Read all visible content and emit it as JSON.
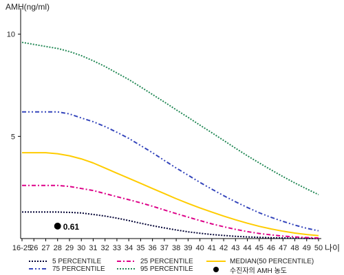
{
  "chart_data": {
    "type": "line",
    "yaxis_label": "AMH(ng/ml)",
    "xaxis_label": "나이",
    "x_categories": [
      "16-25",
      "26",
      "27",
      "28",
      "29",
      "30",
      "31",
      "32",
      "33",
      "34",
      "35",
      "36",
      "37",
      "38",
      "39",
      "40",
      "41",
      "42",
      "43",
      "44",
      "45",
      "46",
      "47",
      "48",
      "49",
      "50"
    ],
    "y_ticks": [
      5,
      10
    ],
    "ylim": [
      0,
      11
    ],
    "series": [
      {
        "name": "5 PERCENTILE",
        "color": "#000033",
        "dash": "dot",
        "values": [
          1.3,
          1.3,
          1.3,
          1.3,
          1.28,
          1.25,
          1.18,
          1.1,
          1.0,
          0.88,
          0.75,
          0.63,
          0.52,
          0.42,
          0.33,
          0.26,
          0.2,
          0.15,
          0.11,
          0.08,
          0.06,
          0.04,
          0.03,
          0.02,
          0.01,
          0.0
        ]
      },
      {
        "name": "25 PERCENTILE",
        "color": "#dd0088",
        "dash": "dashdot",
        "values": [
          2.6,
          2.6,
          2.6,
          2.6,
          2.55,
          2.45,
          2.35,
          2.2,
          2.05,
          1.9,
          1.75,
          1.58,
          1.4,
          1.22,
          1.05,
          0.88,
          0.72,
          0.58,
          0.45,
          0.34,
          0.25,
          0.18,
          0.12,
          0.08,
          0.05,
          0.03
        ]
      },
      {
        "name": "MEDIAN(50 PERCENTILE)",
        "color": "#ffcc00",
        "dash": "solid",
        "values": [
          4.2,
          4.2,
          4.2,
          4.15,
          4.05,
          3.9,
          3.7,
          3.45,
          3.2,
          2.95,
          2.7,
          2.45,
          2.2,
          1.95,
          1.72,
          1.5,
          1.3,
          1.1,
          0.92,
          0.75,
          0.6,
          0.47,
          0.36,
          0.27,
          0.2,
          0.14
        ]
      },
      {
        "name": "75 PERCENTILE",
        "color": "#3344bb",
        "dash": "dashdotdot",
        "values": [
          6.2,
          6.2,
          6.2,
          6.2,
          6.1,
          5.9,
          5.72,
          5.48,
          5.2,
          4.9,
          4.55,
          4.2,
          3.82,
          3.45,
          3.1,
          2.75,
          2.42,
          2.1,
          1.8,
          1.52,
          1.26,
          1.04,
          0.84,
          0.66,
          0.5,
          0.38
        ]
      },
      {
        "name": "95 PERCENTILE",
        "color": "#228855",
        "dash": "dot",
        "values": [
          9.6,
          9.5,
          9.4,
          9.3,
          9.15,
          8.95,
          8.7,
          8.42,
          8.1,
          7.78,
          7.42,
          7.05,
          6.68,
          6.3,
          5.93,
          5.55,
          5.18,
          4.8,
          4.42,
          4.05,
          3.7,
          3.36,
          3.03,
          2.72,
          2.43,
          2.15
        ]
      }
    ],
    "marker": {
      "name": "수진자의 AMH 농도",
      "x_index": 3,
      "y": 0.61,
      "label": "0.61",
      "color": "#000000"
    }
  },
  "legend": [
    {
      "series_index": 0,
      "label": "5 PERCENTILE"
    },
    {
      "series_index": 1,
      "label": "25 PERCENTILE"
    },
    {
      "series_index": 2,
      "label": "MEDIAN(50 PERCENTILE)"
    },
    {
      "series_index": 3,
      "label": "75 PERCENTILE"
    },
    {
      "series_index": 4,
      "label": "95 PERCENTILE"
    },
    {
      "marker": true,
      "label": "수진자의 AMH 농도"
    }
  ]
}
